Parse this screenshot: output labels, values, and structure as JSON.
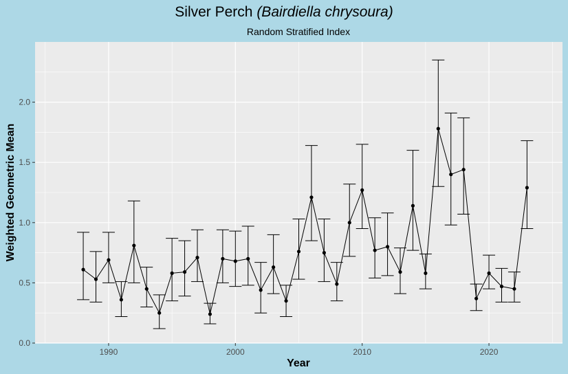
{
  "chart_data": {
    "type": "line",
    "title": "Silver Perch ",
    "title_italic": "(Bairdiella chrysoura)",
    "subtitle": "Random Stratified Index",
    "xlabel": "Year",
    "ylabel": "Weighted Geometric Mean",
    "xlim": [
      1984.2,
      2025.8
    ],
    "ylim": [
      0,
      2.5
    ],
    "x_ticks": [
      1990,
      2000,
      2010,
      2020
    ],
    "y_ticks": [
      0.0,
      0.5,
      1.0,
      1.5,
      2.0
    ],
    "y_tick_labels": [
      "0.0",
      "0.5",
      "1.0",
      "1.5",
      "2.0"
    ],
    "grid": true,
    "error_bars": true,
    "series": [
      {
        "x": [
          1988,
          1989,
          1990,
          1991,
          1992,
          1993,
          1994,
          1995,
          1996,
          1997,
          1998,
          1999,
          2000,
          2001,
          2002,
          2003,
          2004,
          2005,
          2006,
          2007,
          2008,
          2009,
          2010,
          2011,
          2012,
          2013,
          2014,
          2015,
          2016,
          2017,
          2018,
          2019,
          2020,
          2021,
          2022,
          2023
        ],
        "y": [
          0.61,
          0.53,
          0.69,
          0.36,
          0.81,
          0.45,
          0.25,
          0.58,
          0.59,
          0.71,
          0.24,
          0.7,
          0.68,
          0.7,
          0.44,
          0.63,
          0.35,
          0.76,
          1.21,
          0.75,
          0.49,
          1.0,
          1.27,
          0.77,
          0.8,
          0.59,
          1.14,
          0.58,
          1.78,
          1.4,
          1.44,
          0.37,
          0.58,
          0.47,
          0.45,
          1.29
        ],
        "lower": [
          0.36,
          0.34,
          0.5,
          0.22,
          0.5,
          0.3,
          0.12,
          0.35,
          0.39,
          0.51,
          0.16,
          0.5,
          0.47,
          0.48,
          0.25,
          0.41,
          0.22,
          0.53,
          0.85,
          0.51,
          0.35,
          0.72,
          0.95,
          0.54,
          0.56,
          0.41,
          0.77,
          0.45,
          1.3,
          0.98,
          1.07,
          0.27,
          0.45,
          0.34,
          0.34,
          0.95
        ],
        "upper": [
          0.92,
          0.76,
          0.92,
          0.51,
          1.18,
          0.63,
          0.4,
          0.87,
          0.85,
          0.94,
          0.33,
          0.94,
          0.93,
          0.97,
          0.67,
          0.9,
          0.48,
          1.03,
          1.64,
          1.03,
          0.67,
          1.32,
          1.65,
          1.04,
          1.08,
          0.79,
          1.6,
          0.74,
          2.35,
          1.91,
          1.87,
          0.49,
          0.73,
          0.62,
          0.59,
          1.68
        ]
      }
    ]
  },
  "colors": {
    "background": "#add8e6",
    "panel": "#ebebeb",
    "grid": "#ffffff",
    "line": "#000000"
  }
}
